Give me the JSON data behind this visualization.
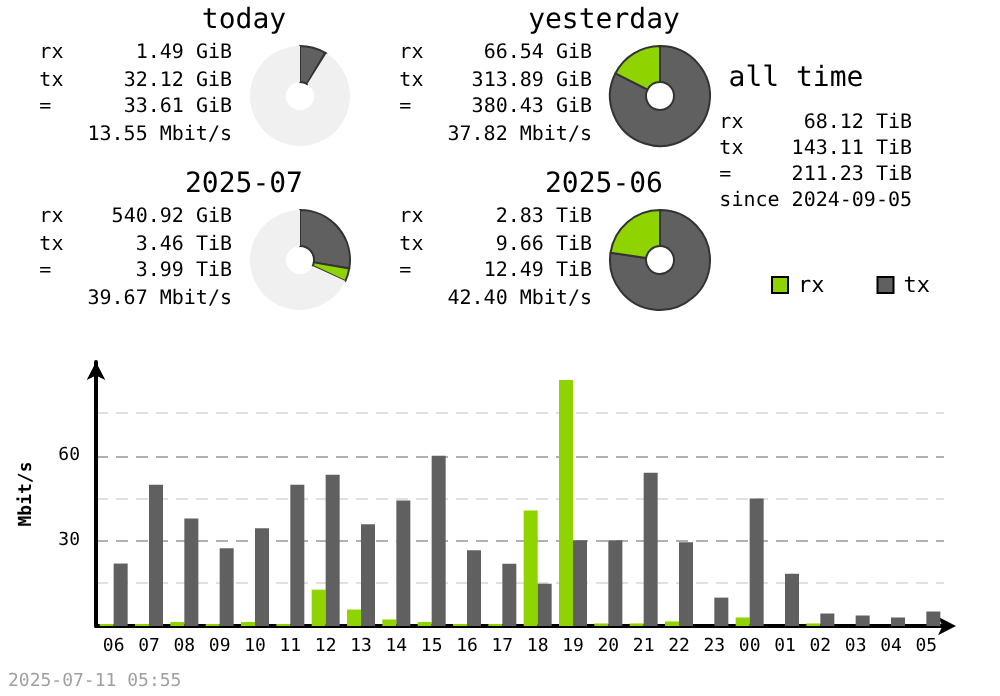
{
  "chart_data": [
    {
      "type": "donut",
      "title": "today",
      "categories": [
        null,
        null,
        null
      ],
      "values": [
        8.44,
        0.39,
        91.17
      ],
      "colors": [
        "#606060",
        "#8fd400",
        "#f0f0f0"
      ],
      "annotations": [
        "rx      1.49 GiB",
        "tx     32.12 GiB",
        "=      33.61 GiB",
        "13.55 Mbit/s"
      ]
    },
    {
      "type": "donut",
      "title": "yesterday",
      "categories": [
        null,
        null
      ],
      "values": [
        82.51,
        17.49
      ],
      "colors": [
        "#606060",
        "#8fd400"
      ],
      "annotations": [
        "rx     66.54 GiB",
        "tx    313.89 GiB",
        "=     380.43 GiB",
        "37.82 Mbit/s"
      ]
    },
    {
      "type": "donut",
      "title": "2025-07",
      "categories": [
        null,
        null,
        null
      ],
      "values": [
        27.7,
        4.23,
        68.07
      ],
      "colors": [
        "#606060",
        "#8fd400",
        "#f0f0f0"
      ],
      "annotations": [
        "rx    540.92 GiB",
        "tx      3.46 TiB",
        "=       3.99 TiB",
        "39.67 Mbit/s"
      ]
    },
    {
      "type": "donut",
      "title": "2025-06",
      "categories": [
        null,
        null
      ],
      "values": [
        77.34,
        22.66
      ],
      "colors": [
        "#606060",
        "#8fd400"
      ],
      "annotations": [
        "rx      2.83 TiB",
        "tx      9.66 TiB",
        "=      12.49 TiB",
        "42.40 Mbit/s"
      ]
    },
    {
      "type": "other",
      "title": "all time",
      "annotations": [
        "rx     68.12 TiB",
        "tx    143.11 TiB",
        "=     211.23 TiB",
        "since 2024-09-05"
      ]
    },
    {
      "type": "bar",
      "ylabel": "Mbit/s",
      "categories": [
        "06",
        "07",
        "08",
        "09",
        "10",
        "11",
        "12",
        "13",
        "14",
        "15",
        "16",
        "17",
        "18",
        "19",
        "20",
        "21",
        "22",
        "23",
        "00",
        "01",
        "02",
        "03",
        "04",
        "05"
      ],
      "series": [
        {
          "name": "rx",
          "color": "#8fd400",
          "values": [
            0.7,
            0.7,
            1.4,
            0.7,
            1.4,
            0.7,
            12.8,
            5.8,
            2.3,
            1.4,
            0.7,
            0.7,
            40.7,
            86.7,
            0.9,
            0.9,
            1.6,
            0,
            3,
            0,
            0.9,
            0,
            0,
            0
          ]
        },
        {
          "name": "tx",
          "color": "#606060",
          "values": [
            22,
            49.8,
            37.9,
            27.4,
            34.4,
            49.8,
            53.3,
            35.8,
            44.2,
            60,
            26.7,
            21.9,
            14.9,
            30.2,
            30.2,
            54,
            29.5,
            10,
            44.9,
            18.4,
            4.4,
            3.7,
            3,
            5.1
          ]
        }
      ],
      "ylim": [
        0,
        93
      ],
      "yticks": [
        {
          "value": 0,
          "label": null
        },
        {
          "value": 15,
          "label": null
        },
        30,
        {
          "value": 45,
          "label": null
        },
        60,
        {
          "value": 75,
          "label": null
        }
      ],
      "grid": "y",
      "legend": "top right",
      "annotations": [
        "2025-07-11 05:55"
      ]
    }
  ]
}
